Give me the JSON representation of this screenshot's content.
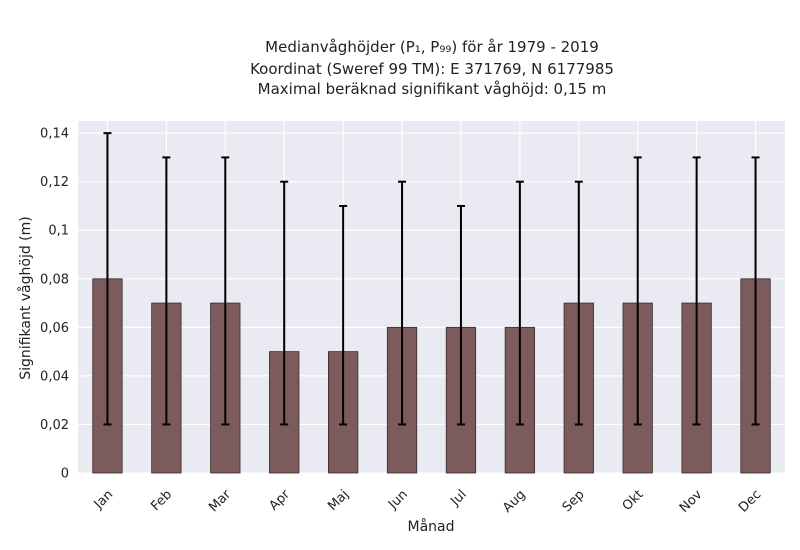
{
  "chart_data": {
    "type": "bar",
    "title_lines": [
      "Medianvåghöjder (P₁, P₉₉) för år 1979 - 2019",
      "Koordinat (Sweref 99 TM): E 371769, N 6177985",
      "Maximal beräknad signifikant våghöjd: 0,15 m"
    ],
    "xlabel": "Månad",
    "ylabel": "Signifikant våghöjd (m)",
    "categories": [
      "Jan",
      "Feb",
      "Mar",
      "Apr",
      "Maj",
      "Jun",
      "Jul",
      "Aug",
      "Sep",
      "Okt",
      "Nov",
      "Dec"
    ],
    "values": [
      0.08,
      0.07,
      0.07,
      0.05,
      0.05,
      0.06,
      0.06,
      0.06,
      0.07,
      0.07,
      0.07,
      0.08
    ],
    "err_low": [
      0.02,
      0.02,
      0.02,
      0.02,
      0.02,
      0.02,
      0.02,
      0.02,
      0.02,
      0.02,
      0.02,
      0.02
    ],
    "err_high": [
      0.14,
      0.13,
      0.13,
      0.12,
      0.11,
      0.12,
      0.11,
      0.12,
      0.12,
      0.13,
      0.13,
      0.13
    ],
    "ylim": [
      0,
      0.145
    ],
    "yticks": [
      0,
      0.02,
      0.04,
      0.06,
      0.08,
      0.1,
      0.12,
      0.14
    ],
    "ytick_labels": [
      "0",
      "0,02",
      "0,04",
      "0,06",
      "0,08",
      "0,1",
      "0,12",
      "0,14"
    ],
    "grid": true,
    "colors": {
      "bar": "#7b5b5b",
      "bar_edge": "#3a2a2a",
      "error": "#000000",
      "plot_bg": "#eaeaf2",
      "grid": "#ffffff"
    }
  }
}
